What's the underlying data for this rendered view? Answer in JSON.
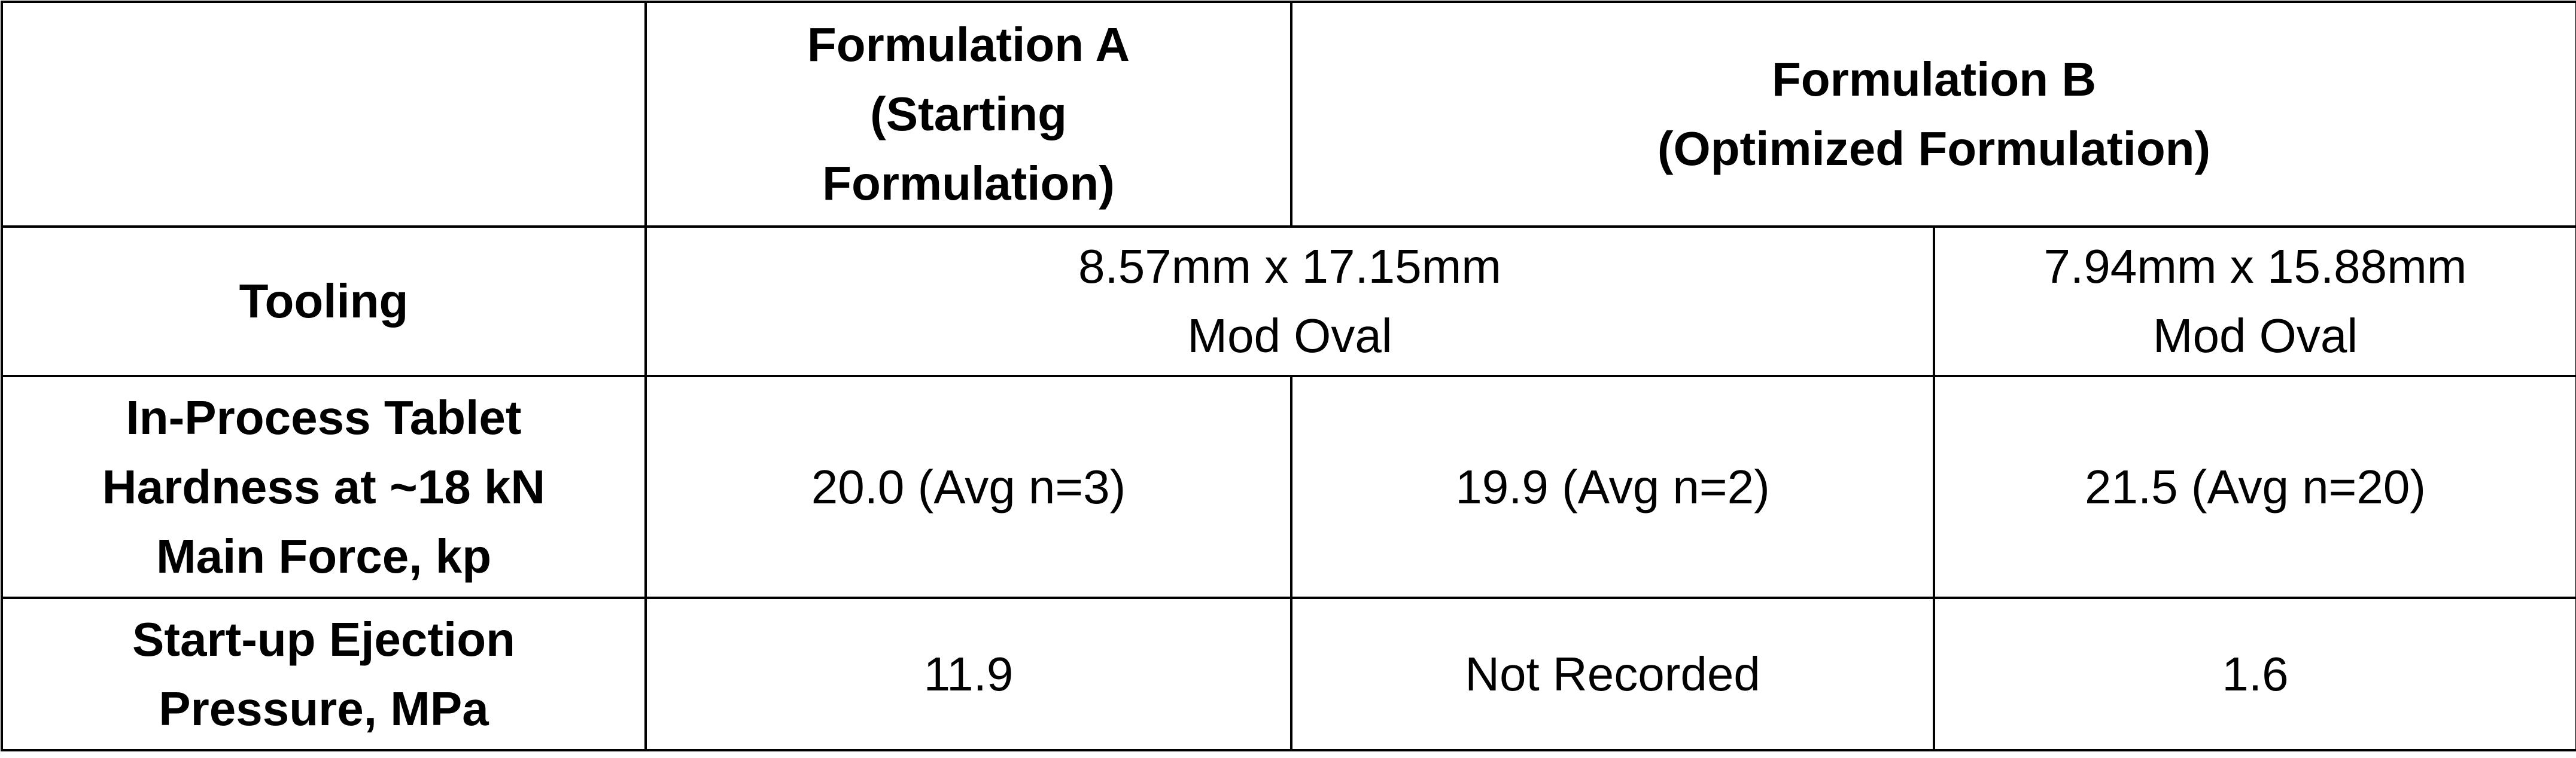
{
  "table": {
    "rows": [
      [
        "Formulation A\n(Starting\nFormulation)",
        "Formulation B\n(Optimized Formulation)"
      ],
      [
        "Tooling",
        "8.57mm x 17.15mm\nMod Oval",
        "7.94mm x 15.88mm\nMod Oval"
      ],
      [
        "In-Process Tablet\nHardness at ~18 kN\nMain Force, kp",
        "20.0 (Avg n=3)",
        "19.9 (Avg n=2)",
        "21.5 (Avg n=20)"
      ],
      [
        "Start-up Ejection\nPressure, MPa",
        "11.9",
        "Not Recorded",
        "1.6"
      ]
    ]
  }
}
